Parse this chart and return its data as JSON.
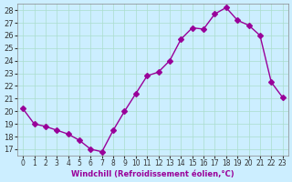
{
  "x": [
    0,
    1,
    2,
    3,
    4,
    5,
    6,
    7,
    8,
    9,
    10,
    11,
    12,
    13,
    14,
    15,
    16,
    17,
    18,
    19,
    20,
    21,
    22,
    23
  ],
  "y": [
    20.2,
    19.0,
    18.8,
    18.5,
    18.2,
    17.7,
    17.0,
    16.8,
    18.5,
    20.0,
    21.4,
    22.8,
    23.1,
    24.0,
    25.7,
    26.6,
    26.5,
    27.7,
    28.2,
    27.2,
    26.8,
    26.0,
    22.3,
    21.1
  ],
  "line_color": "#990099",
  "marker": "D",
  "marker_size": 3,
  "bg_color": "#cceeff",
  "grid_color": "#aaddcc",
  "xlabel": "Windchill (Refroidissement éolien,°C)",
  "ylabel_ticks": [
    17,
    18,
    19,
    20,
    21,
    22,
    23,
    24,
    25,
    26,
    27,
    28
  ],
  "xlim": [
    -0.5,
    23.5
  ],
  "ylim": [
    16.5,
    28.5
  ]
}
